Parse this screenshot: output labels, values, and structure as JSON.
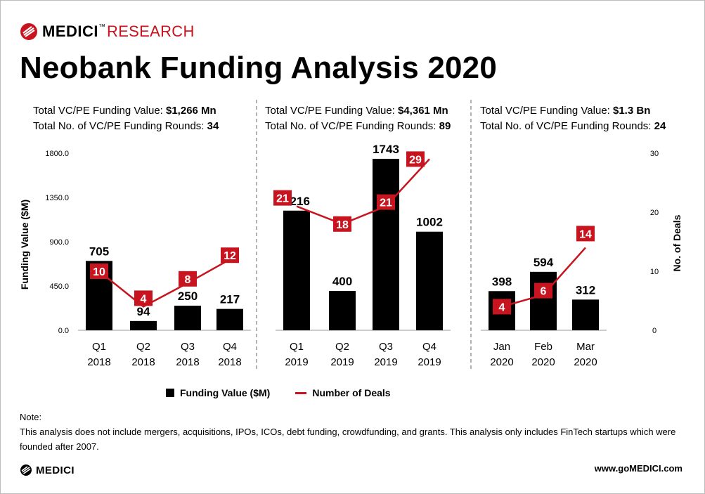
{
  "brand": {
    "name": "MEDICI",
    "suffix": "RESEARCH",
    "tm": "™"
  },
  "title": "Neobank Funding Analysis 2020",
  "panels": [
    {
      "value_label": "Total VC/PE Funding Value: ",
      "value": "$1,266 Mn",
      "rounds_label": "Total No. of VC/PE Funding Rounds: ",
      "rounds": "34"
    },
    {
      "value_label": "Total VC/PE Funding Value: ",
      "value": "$4,361 Mn",
      "rounds_label": "Total No. of VC/PE Funding Rounds: ",
      "rounds": "89"
    },
    {
      "value_label": "Total VC/PE Funding Value: ",
      "value": "$1.3 Bn",
      "rounds_label": "Total No. of VC/PE Funding Rounds: ",
      "rounds": "24"
    }
  ],
  "chart_data": {
    "type": "bar",
    "categories": [
      [
        "Q1",
        "2018"
      ],
      [
        "Q2",
        "2018"
      ],
      [
        "Q3",
        "2018"
      ],
      [
        "Q4",
        "2018"
      ],
      [
        "Q1",
        "2019"
      ],
      [
        "Q2",
        "2019"
      ],
      [
        "Q3",
        "2019"
      ],
      [
        "Q4",
        "2019"
      ],
      [
        "Jan",
        "2020"
      ],
      [
        "Feb",
        "2020"
      ],
      [
        "Mar",
        "2020"
      ]
    ],
    "series": [
      {
        "name": "Funding Value ($M)",
        "type": "bar",
        "axis": "left",
        "color": "#000000",
        "values": [
          705,
          94,
          250,
          217,
          1216,
          400,
          1743,
          1002,
          398,
          594,
          312
        ]
      },
      {
        "name": "Number of Deals",
        "type": "line",
        "axis": "right",
        "color": "#c8141e",
        "values": [
          10,
          4,
          8,
          12,
          21,
          18,
          21,
          29,
          4,
          6,
          14
        ]
      }
    ],
    "groups": [
      [
        0,
        3
      ],
      [
        4,
        7
      ],
      [
        8,
        10
      ]
    ],
    "ylabel": "Funding Value ($M)",
    "ylabel2": "No. of Deals",
    "ylim": [
      0,
      1800
    ],
    "ylim2": [
      0,
      30
    ],
    "yticks": [
      "0.0",
      "450.0",
      "900.0",
      "1350.0",
      "1800.0"
    ],
    "yticks2": [
      "0",
      "10",
      "20",
      "30"
    ],
    "grid": false,
    "legend": "bottom-center"
  },
  "legend": {
    "bar_label": "Funding Value ($M)",
    "line_label": "Number of Deals"
  },
  "note": {
    "heading": "Note:",
    "text": "This analysis does not include mergers, acquisitions, IPOs, ICOs, debt funding, crowdfunding, and grants. This analysis only includes FinTech startups which were founded after 2007."
  },
  "footer": {
    "logo": "MEDICI",
    "url": "www.goMEDICI.com"
  }
}
